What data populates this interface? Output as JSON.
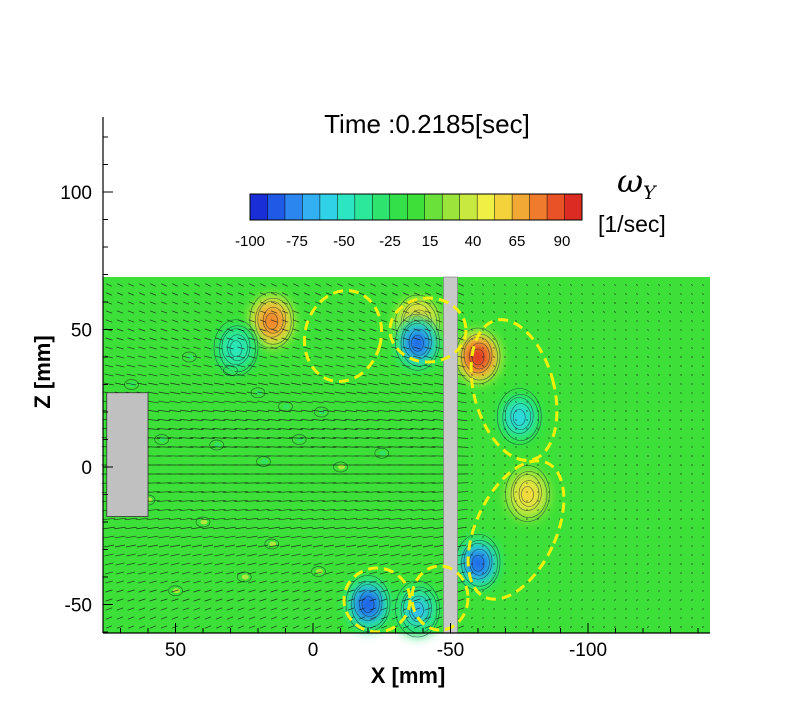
{
  "chart_data": {
    "type": "heatmap",
    "title": "Time :0.2185[sec]",
    "xlabel": "X [mm]",
    "ylabel": "Z [mm]",
    "x_ticks": [
      50,
      0,
      -50,
      -100
    ],
    "y_ticks": [
      100,
      50,
      0,
      -50
    ],
    "xlim": [
      75,
      -145
    ],
    "ylim": [
      -60,
      125
    ],
    "colorbar": {
      "symbol": "ω",
      "subscript": "Y",
      "unit": "[1/sec]",
      "ticks": [
        -100,
        -75,
        -50,
        -25,
        15,
        40,
        65,
        90
      ],
      "colors": [
        "#1a2ed8",
        "#1f5ae6",
        "#2b86f0",
        "#33b0f2",
        "#2fd2e6",
        "#2ce6c3",
        "#2ce89a",
        "#2fe46e",
        "#34e049",
        "#3de038",
        "#6ae03a",
        "#9ae43c",
        "#c8ea40",
        "#eef043",
        "#f3d23c",
        "#f2a834",
        "#ee7c2c",
        "#e85226",
        "#dc2b22"
      ]
    },
    "field": {
      "background_value": 0,
      "vortices": [
        {
          "x": 15,
          "z": 53,
          "value": 80
        },
        {
          "x": 28,
          "z": 43,
          "value": -55
        },
        {
          "x": -38,
          "z": 52,
          "value": 70
        },
        {
          "x": -38,
          "z": 45,
          "value": -95
        },
        {
          "x": -60,
          "z": 40,
          "value": 95
        },
        {
          "x": -75,
          "z": 18,
          "value": -60
        },
        {
          "x": -78,
          "z": -10,
          "value": 55
        },
        {
          "x": -60,
          "z": -35,
          "value": -95
        },
        {
          "x": -20,
          "z": -50,
          "value": -100
        },
        {
          "x": -38,
          "z": -52,
          "value": -70
        }
      ]
    },
    "plate_x": -50,
    "body": {
      "x_range": [
        75,
        60
      ],
      "z_range": [
        -18,
        27
      ]
    }
  }
}
